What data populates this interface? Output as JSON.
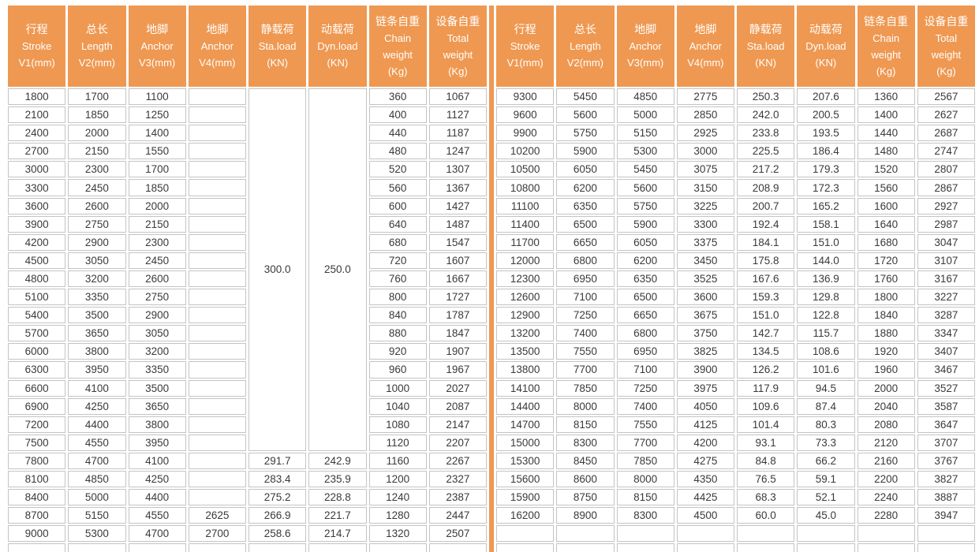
{
  "colors": {
    "background": "#FFFFFF",
    "header_bg": "#EF9851",
    "header_text": "#FFFFFF",
    "divider": "#EF9851",
    "cell_border": "#C4C4C4",
    "cell_text": "#3A3A3A"
  },
  "table": {
    "columns": [
      {
        "key": "stroke",
        "lines": [
          "行程",
          "Stroke",
          "V1(mm)"
        ]
      },
      {
        "key": "length",
        "lines": [
          "总长",
          "Length",
          "V2(mm)"
        ]
      },
      {
        "key": "anchor-v3",
        "lines": [
          "地脚",
          "Anchor",
          "V3(mm)"
        ]
      },
      {
        "key": "anchor-v4",
        "lines": [
          "地脚",
          "Anchor",
          "V4(mm)"
        ]
      },
      {
        "key": "sta-load",
        "lines": [
          "静载荷",
          "Sta.load",
          "(KN)"
        ]
      },
      {
        "key": "dyn-load",
        "lines": [
          "动载荷",
          "Dyn.load",
          "(KN)"
        ]
      },
      {
        "key": "chain-weight",
        "lines": [
          "链条自重",
          "Chain",
          "weight",
          "(Kg)"
        ]
      },
      {
        "key": "total-weight",
        "lines": [
          "设备自重",
          "Total",
          "weight",
          "(Kg)"
        ]
      }
    ],
    "left_merged": {
      "rows": 20,
      "cols": [
        4,
        5
      ],
      "values": [
        "300.0",
        "250.0"
      ]
    },
    "left_rows": [
      [
        "1800",
        "1700",
        "1100",
        "",
        "",
        "",
        "360",
        "1067"
      ],
      [
        "2100",
        "1850",
        "1250",
        "",
        "",
        "",
        "400",
        "1127"
      ],
      [
        "2400",
        "2000",
        "1400",
        "",
        "",
        "",
        "440",
        "1187"
      ],
      [
        "2700",
        "2150",
        "1550",
        "",
        "",
        "",
        "480",
        "1247"
      ],
      [
        "3000",
        "2300",
        "1700",
        "",
        "",
        "",
        "520",
        "1307"
      ],
      [
        "3300",
        "2450",
        "1850",
        "",
        "",
        "",
        "560",
        "1367"
      ],
      [
        "3600",
        "2600",
        "2000",
        "",
        "",
        "",
        "600",
        "1427"
      ],
      [
        "3900",
        "2750",
        "2150",
        "",
        "",
        "",
        "640",
        "1487"
      ],
      [
        "4200",
        "2900",
        "2300",
        "",
        "",
        "",
        "680",
        "1547"
      ],
      [
        "4500",
        "3050",
        "2450",
        "",
        "",
        "",
        "720",
        "1607"
      ],
      [
        "4800",
        "3200",
        "2600",
        "",
        "",
        "",
        "760",
        "1667"
      ],
      [
        "5100",
        "3350",
        "2750",
        "",
        "",
        "",
        "800",
        "1727"
      ],
      [
        "5400",
        "3500",
        "2900",
        "",
        "",
        "",
        "840",
        "1787"
      ],
      [
        "5700",
        "3650",
        "3050",
        "",
        "",
        "",
        "880",
        "1847"
      ],
      [
        "6000",
        "3800",
        "3200",
        "",
        "",
        "",
        "920",
        "1907"
      ],
      [
        "6300",
        "3950",
        "3350",
        "",
        "",
        "",
        "960",
        "1967"
      ],
      [
        "6600",
        "4100",
        "3500",
        "",
        "",
        "",
        "1000",
        "2027"
      ],
      [
        "6900",
        "4250",
        "3650",
        "",
        "",
        "",
        "1040",
        "2087"
      ],
      [
        "7200",
        "4400",
        "3800",
        "",
        "",
        "",
        "1080",
        "2147"
      ],
      [
        "7500",
        "4550",
        "3950",
        "",
        "",
        "",
        "1120",
        "2207"
      ],
      [
        "7800",
        "4700",
        "4100",
        "",
        "291.7",
        "242.9",
        "1160",
        "2267"
      ],
      [
        "8100",
        "4850",
        "4250",
        "",
        "283.4",
        "235.9",
        "1200",
        "2327"
      ],
      [
        "8400",
        "5000",
        "4400",
        "",
        "275.2",
        "228.8",
        "1240",
        "2387"
      ],
      [
        "8700",
        "5150",
        "4550",
        "2625",
        "266.9",
        "221.7",
        "1280",
        "2447"
      ],
      [
        "9000",
        "5300",
        "4700",
        "2700",
        "258.6",
        "214.7",
        "1320",
        "2507"
      ],
      [
        "",
        "",
        "",
        "",
        "",
        "",
        "",
        ""
      ]
    ],
    "right_rows": [
      [
        "9300",
        "5450",
        "4850",
        "2775",
        "250.3",
        "207.6",
        "1360",
        "2567"
      ],
      [
        "9600",
        "5600",
        "5000",
        "2850",
        "242.0",
        "200.5",
        "1400",
        "2627"
      ],
      [
        "9900",
        "5750",
        "5150",
        "2925",
        "233.8",
        "193.5",
        "1440",
        "2687"
      ],
      [
        "10200",
        "5900",
        "5300",
        "3000",
        "225.5",
        "186.4",
        "1480",
        "2747"
      ],
      [
        "10500",
        "6050",
        "5450",
        "3075",
        "217.2",
        "179.3",
        "1520",
        "2807"
      ],
      [
        "10800",
        "6200",
        "5600",
        "3150",
        "208.9",
        "172.3",
        "1560",
        "2867"
      ],
      [
        "11100",
        "6350",
        "5750",
        "3225",
        "200.7",
        "165.2",
        "1600",
        "2927"
      ],
      [
        "11400",
        "6500",
        "5900",
        "3300",
        "192.4",
        "158.1",
        "1640",
        "2987"
      ],
      [
        "11700",
        "6650",
        "6050",
        "3375",
        "184.1",
        "151.0",
        "1680",
        "3047"
      ],
      [
        "12000",
        "6800",
        "6200",
        "3450",
        "175.8",
        "144.0",
        "1720",
        "3107"
      ],
      [
        "12300",
        "6950",
        "6350",
        "3525",
        "167.6",
        "136.9",
        "1760",
        "3167"
      ],
      [
        "12600",
        "7100",
        "6500",
        "3600",
        "159.3",
        "129.8",
        "1800",
        "3227"
      ],
      [
        "12900",
        "7250",
        "6650",
        "3675",
        "151.0",
        "122.8",
        "1840",
        "3287"
      ],
      [
        "13200",
        "7400",
        "6800",
        "3750",
        "142.7",
        "115.7",
        "1880",
        "3347"
      ],
      [
        "13500",
        "7550",
        "6950",
        "3825",
        "134.5",
        "108.6",
        "1920",
        "3407"
      ],
      [
        "13800",
        "7700",
        "7100",
        "3900",
        "126.2",
        "101.6",
        "1960",
        "3467"
      ],
      [
        "14100",
        "7850",
        "7250",
        "3975",
        "117.9",
        "94.5",
        "2000",
        "3527"
      ],
      [
        "14400",
        "8000",
        "7400",
        "4050",
        "109.6",
        "87.4",
        "2040",
        "3587"
      ],
      [
        "14700",
        "8150",
        "7550",
        "4125",
        "101.4",
        "80.3",
        "2080",
        "3647"
      ],
      [
        "15000",
        "8300",
        "7700",
        "4200",
        "93.1",
        "73.3",
        "2120",
        "3707"
      ],
      [
        "15300",
        "8450",
        "7850",
        "4275",
        "84.8",
        "66.2",
        "2160",
        "3767"
      ],
      [
        "15600",
        "8600",
        "8000",
        "4350",
        "76.5",
        "59.1",
        "2200",
        "3827"
      ],
      [
        "15900",
        "8750",
        "8150",
        "4425",
        "68.3",
        "52.1",
        "2240",
        "3887"
      ],
      [
        "16200",
        "8900",
        "8300",
        "4500",
        "60.0",
        "45.0",
        "2280",
        "3947"
      ],
      [
        "",
        "",
        "",
        "",
        "",
        "",
        "",
        ""
      ],
      [
        "",
        "",
        "",
        "",
        "",
        "",
        "",
        ""
      ]
    ]
  }
}
